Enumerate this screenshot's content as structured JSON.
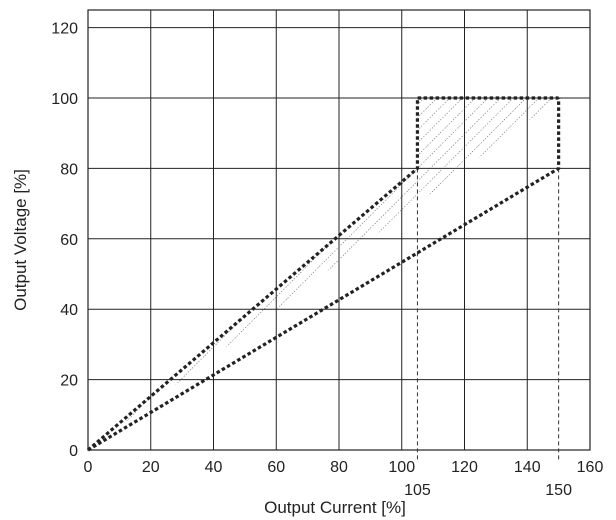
{
  "chart_data": {
    "type": "area",
    "xlabel": "Output Current [%]",
    "ylabel": "Output Voltage [%]",
    "xlim": [
      0,
      160
    ],
    "ylim": [
      0,
      125
    ],
    "x_ticks": [
      0,
      20,
      40,
      60,
      80,
      100,
      120,
      140,
      160
    ],
    "y_ticks": [
      0,
      20,
      40,
      60,
      80,
      100,
      120
    ],
    "grid": true,
    "annotations": [
      "105",
      "150"
    ],
    "reference_lines_x": [
      105,
      150
    ],
    "region_boundary": {
      "upper": [
        [
          0,
          0
        ],
        [
          105,
          80
        ],
        [
          105,
          100
        ],
        [
          150,
          100
        ]
      ],
      "lower": [
        [
          0,
          0
        ],
        [
          150,
          80
        ],
        [
          150,
          100
        ]
      ]
    },
    "region_fill": "hatched",
    "colors": {
      "grid": "#222222",
      "boundary": "#222222",
      "hatch": "#444444"
    }
  }
}
